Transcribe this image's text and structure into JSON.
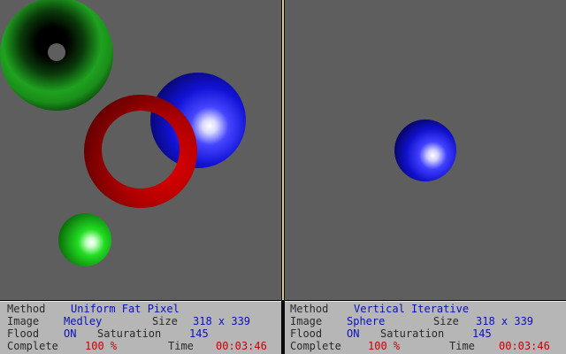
{
  "colors": {
    "viewport_bg": "#5e5e5e",
    "panel_bg": "#b6b6b6",
    "label": "#2a2a2a",
    "value": "#0a14b4",
    "highlight": "#c80000",
    "divider": "#d6c98a"
  },
  "scene_objects_left": [
    "green-torus",
    "red-torus",
    "blue-sphere",
    "green-sphere"
  ],
  "scene_objects_right": [
    "blue-sphere"
  ],
  "left_panel": {
    "method_label": "Method",
    "method_value": "Uniform Fat Pixel",
    "image_label": "Image",
    "image_value": "Medley",
    "size_label": "Size",
    "size_value": "318 x 339",
    "flood_label": "Flood",
    "flood_value": "ON",
    "saturation_label": "Saturation",
    "saturation_value": "145",
    "complete_label": "Complete",
    "complete_value": "100 %",
    "time_label": "Time",
    "time_value": "00:03:46"
  },
  "right_panel": {
    "method_label": "Method",
    "method_value": "Vertical Iterative",
    "image_label": "Image",
    "image_value": "Sphere",
    "size_label": "Size",
    "size_value": "318 x 339",
    "flood_label": "Flood",
    "flood_value": "ON",
    "saturation_label": "Saturation",
    "saturation_value": "145",
    "complete_label": "Complete",
    "complete_value": "100 %",
    "time_label": "Time",
    "time_value": "00:03:46"
  }
}
